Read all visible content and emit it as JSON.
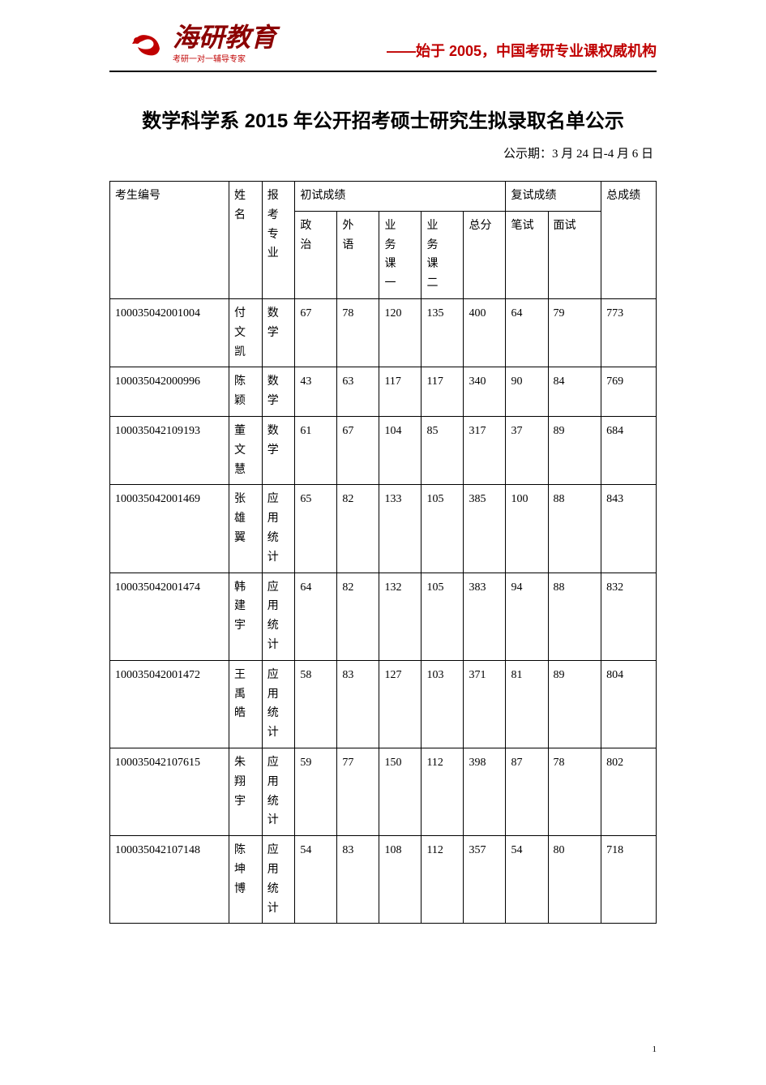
{
  "header": {
    "logo_main": "海研教育",
    "logo_sub": "考研一对一辅导专家",
    "right_text": "——始于 2005，中国考研专业课权威机构",
    "logo_color": "#c00000",
    "logo_dark": "#8b0000"
  },
  "document": {
    "title": "数学科学系 2015 年公开招考硕士研究生拟录取名单公示",
    "announce_period": "公示期：3 月 24 日-4 月 6 日",
    "page_number": "1"
  },
  "table": {
    "columns": {
      "id": "考生编号",
      "name": "姓名",
      "major": "报考专业",
      "prelim_group": "初试成绩",
      "retest_group": "复试成绩",
      "final": "总成绩",
      "politics": "政治",
      "foreign": "外语",
      "course1": "业务课一",
      "course2": "业务课二",
      "subtotal": "总分",
      "written": "笔试",
      "interview": "面试"
    },
    "column_widths": {
      "id": 130,
      "name": 36,
      "major": 36,
      "sub": 46,
      "written": 46,
      "interview": 58,
      "total": 60
    },
    "styling": {
      "border_color": "#000000",
      "font_size": 14,
      "text_color": "#000000",
      "background": "#ffffff"
    },
    "rows": [
      {
        "id": "100035042001004",
        "name": "付文凯",
        "major": "数学",
        "politics": "67",
        "foreign": "78",
        "course1": "120",
        "course2": "135",
        "subtotal": "400",
        "written": "64",
        "interview": "79",
        "final": "773"
      },
      {
        "id": "100035042000996",
        "name": "陈颖",
        "major": "数学",
        "politics": "43",
        "foreign": "63",
        "course1": "117",
        "course2": "117",
        "subtotal": "340",
        "written": "90",
        "interview": "84",
        "final": "769"
      },
      {
        "id": "100035042109193",
        "name": "董文慧",
        "major": "数学",
        "politics": "61",
        "foreign": "67",
        "course1": "104",
        "course2": "85",
        "subtotal": "317",
        "written": "37",
        "interview": "89",
        "final": "684"
      },
      {
        "id": "100035042001469",
        "name": "张雄翼",
        "major": "应用统计",
        "politics": "65",
        "foreign": "82",
        "course1": "133",
        "course2": "105",
        "subtotal": "385",
        "written": "100",
        "interview": "88",
        "final": "843"
      },
      {
        "id": "100035042001474",
        "name": "韩建宇",
        "major": "应用统计",
        "politics": "64",
        "foreign": "82",
        "course1": "132",
        "course2": "105",
        "subtotal": "383",
        "written": "94",
        "interview": "88",
        "final": "832"
      },
      {
        "id": "100035042001472",
        "name": "王禹皓",
        "major": "应用统计",
        "politics": "58",
        "foreign": "83",
        "course1": "127",
        "course2": "103",
        "subtotal": "371",
        "written": "81",
        "interview": "89",
        "final": "804"
      },
      {
        "id": "100035042107615",
        "name": "朱翔宇",
        "major": "应用统计",
        "politics": "59",
        "foreign": "77",
        "course1": "150",
        "course2": "112",
        "subtotal": "398",
        "written": "87",
        "interview": "78",
        "final": "802"
      },
      {
        "id": "100035042107148",
        "name": "陈坤博",
        "major": "应用统计",
        "politics": "54",
        "foreign": "83",
        "course1": "108",
        "course2": "112",
        "subtotal": "357",
        "written": "54",
        "interview": "80",
        "final": "718"
      }
    ]
  }
}
